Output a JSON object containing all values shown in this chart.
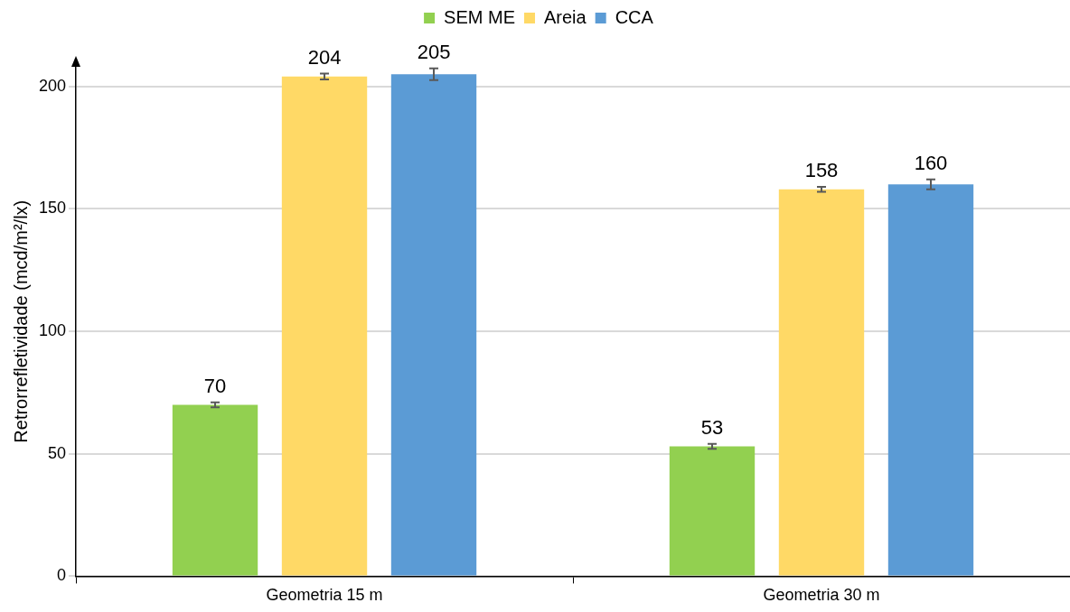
{
  "chart_data": {
    "type": "bar",
    "ylabel": "Retrorrefletividade (mcd/m²/lx)",
    "categories": [
      "Geometria 15 m",
      "Geometria 30 m"
    ],
    "series": [
      {
        "name": "SEM ME",
        "color": "#92d050",
        "values": [
          70,
          53
        ],
        "errors": [
          1,
          1
        ]
      },
      {
        "name": "Areia",
        "color": "#ffd966",
        "values": [
          204,
          158
        ],
        "errors": [
          1.2,
          1
        ]
      },
      {
        "name": "CCA",
        "color": "#5b9bd5",
        "values": [
          205,
          160
        ],
        "errors": [
          2.4,
          2
        ]
      }
    ],
    "ylim": [
      0,
      208
    ],
    "yticks": [
      0,
      50,
      100,
      150,
      200
    ],
    "grid": "y",
    "legend": "top",
    "data_labels": true
  }
}
